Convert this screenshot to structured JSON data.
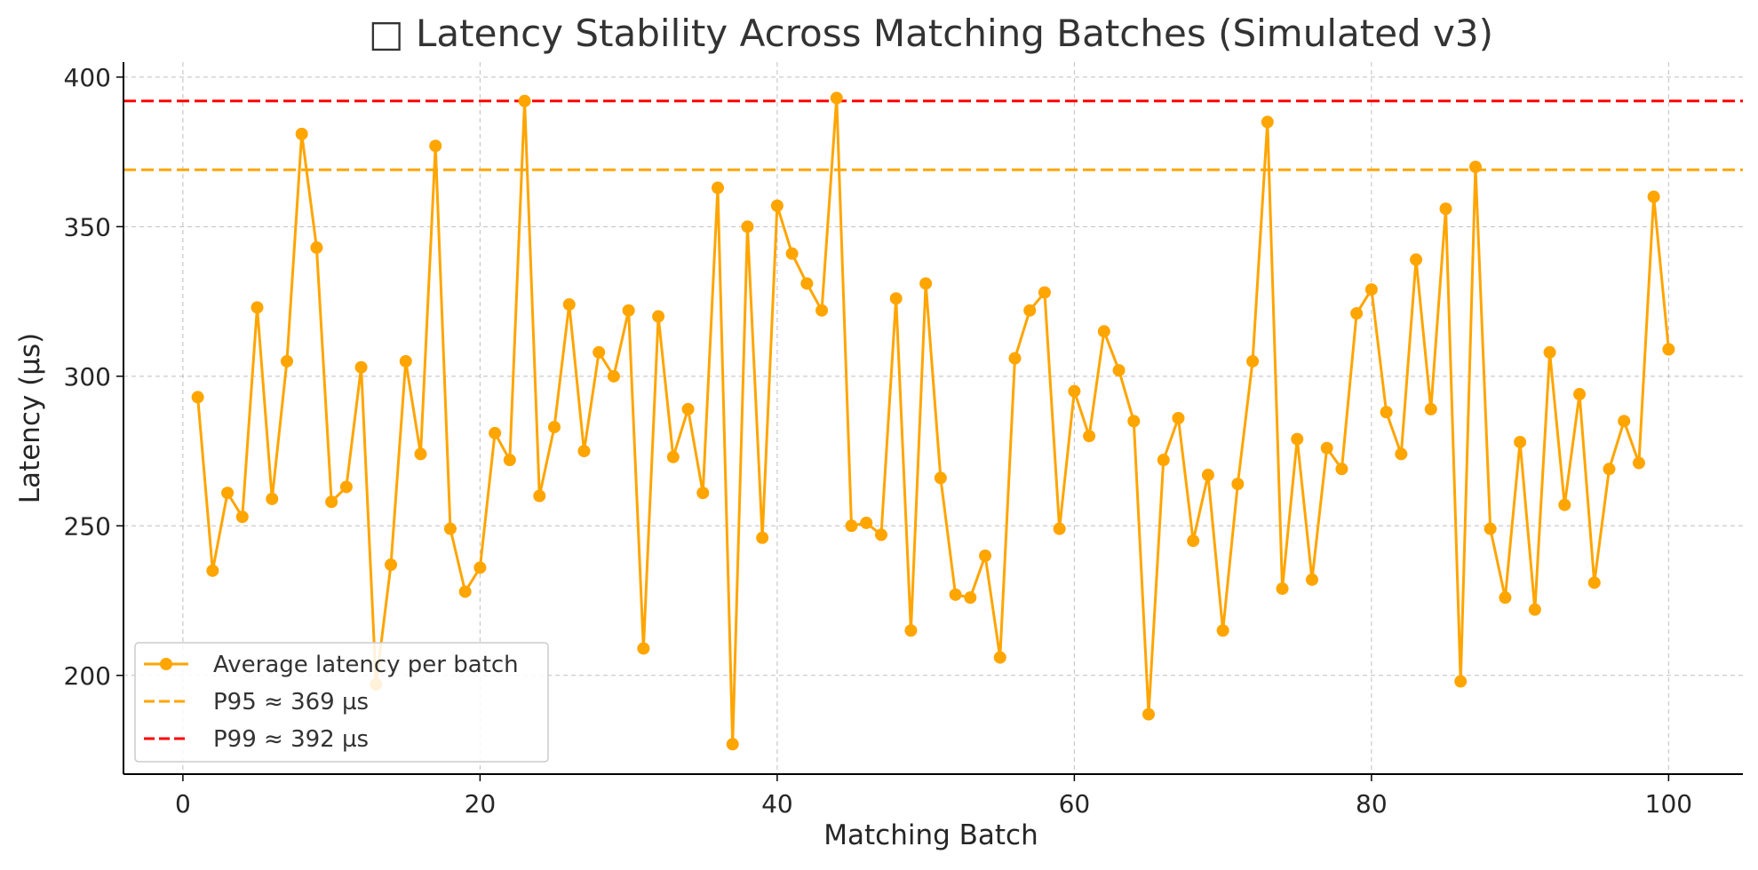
{
  "chart_data": {
    "type": "line",
    "title": "□ Latency Stability Across Matching Batches (Simulated v3)",
    "xlabel": "Matching Batch",
    "ylabel": "Latency (µs)",
    "xlim": [
      -4,
      105
    ],
    "ylim": [
      167,
      405
    ],
    "x_ticks": [
      0,
      20,
      40,
      60,
      80,
      100
    ],
    "y_ticks": [
      200,
      250,
      300,
      350,
      400
    ],
    "grid": true,
    "legend_position": "lower-left",
    "x": [
      1,
      2,
      3,
      4,
      5,
      6,
      7,
      8,
      9,
      10,
      11,
      12,
      13,
      14,
      15,
      16,
      17,
      18,
      19,
      20,
      21,
      22,
      23,
      24,
      25,
      26,
      27,
      28,
      29,
      30,
      31,
      32,
      33,
      34,
      35,
      36,
      37,
      38,
      39,
      40,
      41,
      42,
      43,
      44,
      45,
      46,
      47,
      48,
      49,
      50,
      51,
      52,
      53,
      54,
      55,
      56,
      57,
      58,
      59,
      60,
      61,
      62,
      63,
      64,
      65,
      66,
      67,
      68,
      69,
      70,
      71,
      72,
      73,
      74,
      75,
      76,
      77,
      78,
      79,
      80,
      81,
      82,
      83,
      84,
      85,
      86,
      87,
      88,
      89,
      90,
      91,
      92,
      93,
      94,
      95,
      96,
      97,
      98,
      99,
      100
    ],
    "series": [
      {
        "name": "Average latency per batch",
        "color": "#FFA500",
        "marker": "circle",
        "values": [
          293,
          235,
          261,
          253,
          323,
          259,
          305,
          381,
          343,
          258,
          263,
          303,
          197,
          237,
          305,
          274,
          377,
          249,
          228,
          236,
          281,
          272,
          392,
          260,
          283,
          324,
          275,
          308,
          300,
          322,
          209,
          320,
          273,
          289,
          261,
          363,
          177,
          350,
          246,
          357,
          341,
          331,
          322,
          393,
          250,
          251,
          247,
          326,
          215,
          331,
          266,
          227,
          226,
          240,
          206,
          306,
          322,
          328,
          249,
          295,
          280,
          315,
          302,
          285,
          187,
          272,
          286,
          245,
          267,
          215,
          264,
          305,
          385,
          229,
          279,
          232,
          276,
          269,
          321,
          329,
          288,
          274,
          339,
          289,
          356,
          198,
          370,
          249,
          226,
          278,
          222,
          308,
          257,
          294,
          231,
          269,
          285,
          271,
          360,
          309
        ]
      }
    ],
    "reference_lines": [
      {
        "name": "P95 ≈ 369 µs",
        "y": 369,
        "color": "#FFA500",
        "style": "dashed"
      },
      {
        "name": "P99 ≈ 392 µs",
        "y": 392,
        "color": "#FF0000",
        "style": "dashed"
      }
    ]
  }
}
